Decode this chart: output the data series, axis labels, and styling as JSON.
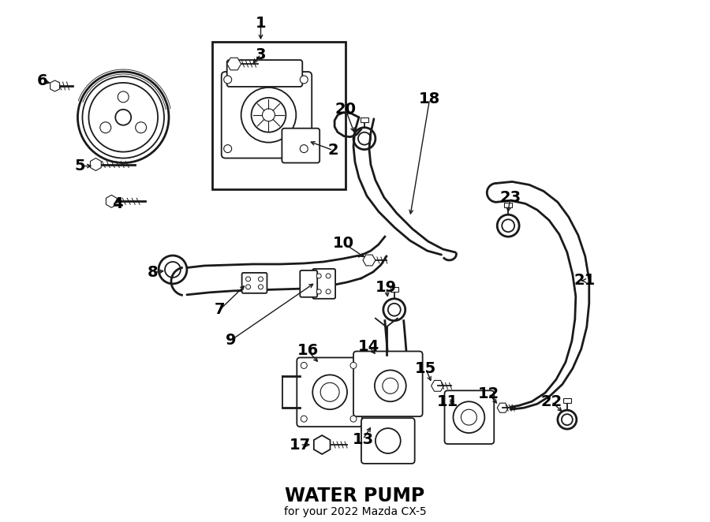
{
  "title": "WATER PUMP",
  "subtitle": "for your 2022 Mazda CX-5",
  "bg_color": "#ffffff",
  "line_color": "#1a1a1a",
  "text_color": "#000000",
  "fig_width": 9.0,
  "fig_height": 6.62,
  "dpi": 100
}
